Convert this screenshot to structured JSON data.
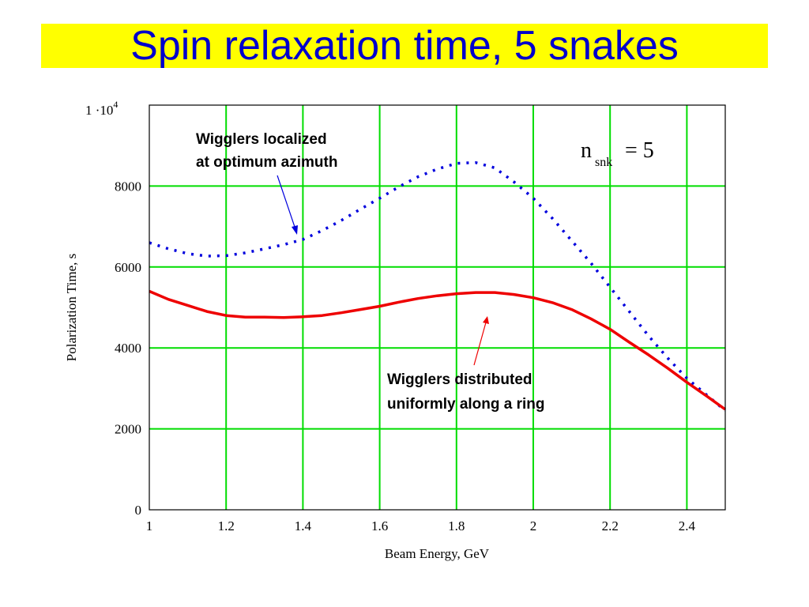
{
  "slide": {
    "title": "Spin relaxation time, 5 snakes"
  },
  "chart_data": {
    "type": "line",
    "xlabel": "Beam Energy,  GeV",
    "ylabel": "Polarization Time,  s",
    "xlim": [
      1,
      2.5
    ],
    "ylim": [
      0,
      10000
    ],
    "x_ticks": [
      "1",
      "1.2",
      "1.4",
      "1.6",
      "1.8",
      "2",
      "2.2",
      "2.4"
    ],
    "y_ticks": [
      "0",
      "2000",
      "4000",
      "6000",
      "8000"
    ],
    "y_top_tick": {
      "mantissa": "1 ·10",
      "exponent": "4"
    },
    "grid": true,
    "colors": {
      "grid": "#00dd00",
      "localized": "#0000dd",
      "distributed": "#ee0000",
      "axes": "#000000"
    },
    "series": [
      {
        "key": "localized",
        "style": "dotted",
        "x": [
          1.0,
          1.05,
          1.1,
          1.15,
          1.2,
          1.25,
          1.3,
          1.35,
          1.4,
          1.45,
          1.5,
          1.55,
          1.6,
          1.65,
          1.7,
          1.75,
          1.8,
          1.85,
          1.9,
          1.95,
          2.0,
          2.05,
          2.1,
          2.15,
          2.2,
          2.25,
          2.3,
          2.35,
          2.4,
          2.45,
          2.5
        ],
        "values": [
          6600,
          6450,
          6330,
          6270,
          6280,
          6350,
          6450,
          6550,
          6680,
          6900,
          7150,
          7430,
          7700,
          7980,
          8230,
          8420,
          8560,
          8580,
          8450,
          8100,
          7700,
          7200,
          6650,
          6100,
          5500,
          4900,
          4300,
          3750,
          3250,
          2850,
          2450
        ]
      },
      {
        "key": "distributed",
        "style": "solid",
        "x": [
          1.0,
          1.05,
          1.1,
          1.15,
          1.2,
          1.25,
          1.3,
          1.35,
          1.4,
          1.45,
          1.5,
          1.55,
          1.6,
          1.65,
          1.7,
          1.75,
          1.8,
          1.85,
          1.9,
          1.95,
          2.0,
          2.05,
          2.1,
          2.15,
          2.2,
          2.25,
          2.3,
          2.35,
          2.4,
          2.45,
          2.5
        ],
        "values": [
          5400,
          5200,
          5050,
          4900,
          4800,
          4760,
          4760,
          4750,
          4770,
          4800,
          4870,
          4950,
          5030,
          5130,
          5220,
          5290,
          5340,
          5370,
          5370,
          5320,
          5240,
          5120,
          4950,
          4720,
          4460,
          4140,
          3830,
          3500,
          3150,
          2820,
          2480
        ]
      }
    ],
    "annotations": {
      "localized_line1": "Wigglers localized",
      "localized_line2": "at optimum azimuth",
      "distributed_line1": "Wigglers distributed",
      "distributed_line2": "uniformly along a ring",
      "formula_n": "n",
      "formula_sub": "snk",
      "formula_rhs": "= 5"
    }
  }
}
